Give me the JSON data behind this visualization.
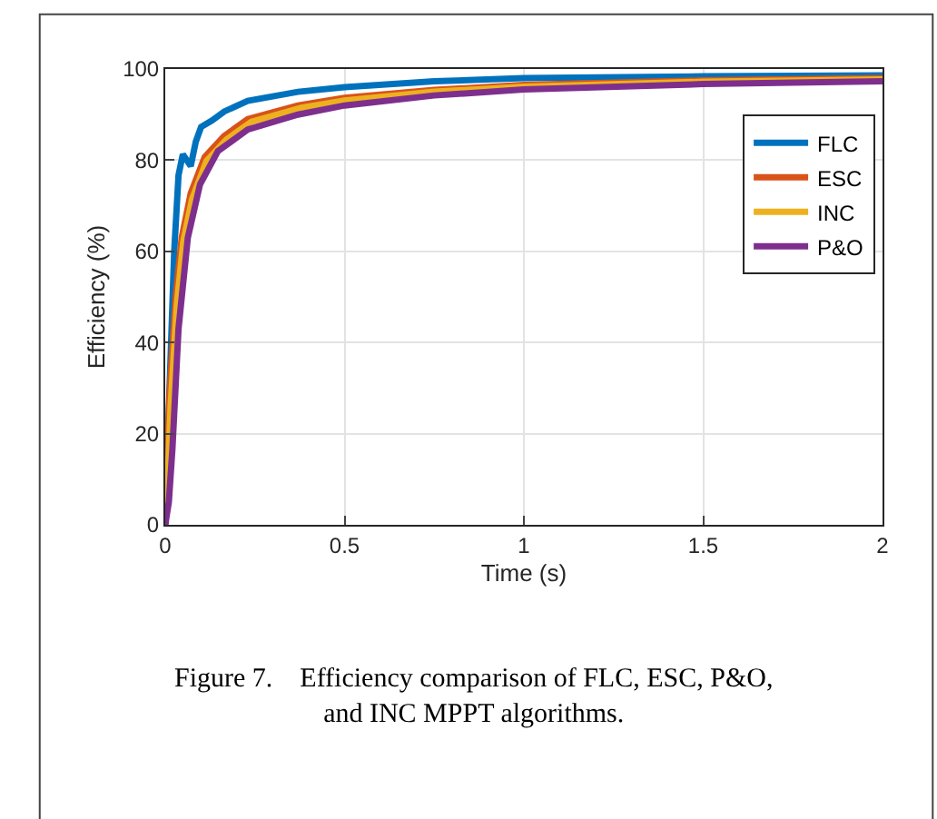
{
  "chart_data": {
    "type": "line",
    "xlabel": "Time (s)",
    "ylabel": "Efficiency (%)",
    "xlim": [
      0,
      2
    ],
    "ylim": [
      0,
      100
    ],
    "xticks": [
      0,
      0.5,
      1,
      1.5,
      2
    ],
    "yticks": [
      0,
      20,
      40,
      60,
      80,
      100
    ],
    "grid": true,
    "legend": "top right",
    "line_style": "solid",
    "marker": "none",
    "annotations": [
      "Figure 7.    Efficiency comparison of FLC, ESC, P&O, and INC MPPT algorithms."
    ],
    "series": [
      {
        "name": "FLC",
        "color": "#0072bd",
        "x": [
          0,
          0.012,
          0.025,
          0.037,
          0.049,
          0.06,
          0.071,
          0.085,
          0.1,
          0.13,
          0.165,
          0.23,
          0.37,
          0.5,
          0.75,
          1,
          1.5,
          2
        ],
        "values": [
          0,
          30,
          60,
          76.7,
          81.3,
          80,
          78.7,
          84,
          87.3,
          88.7,
          90.7,
          93,
          95,
          96,
          97.3,
          98,
          98.4,
          98.6
        ]
      },
      {
        "name": "ESC",
        "color": "#d95319",
        "x": [
          0,
          0.006,
          0.012,
          0.029,
          0.046,
          0.071,
          0.11,
          0.164,
          0.23,
          0.37,
          0.5,
          0.75,
          1,
          1.5,
          2
        ],
        "values": [
          0,
          15,
          28.7,
          50,
          63,
          72.7,
          80.7,
          85.3,
          89,
          92,
          93.7,
          95.4,
          96.5,
          97.5,
          98
        ]
      },
      {
        "name": "INC",
        "color": "#edb120",
        "x": [
          0,
          0.008,
          0.015,
          0.032,
          0.05,
          0.075,
          0.115,
          0.17,
          0.24,
          0.38,
          0.5,
          0.75,
          1,
          1.5,
          2
        ],
        "values": [
          0,
          12,
          26,
          48,
          62,
          71.5,
          79.8,
          84.5,
          88.4,
          91.5,
          93.1,
          95,
          96.1,
          97.2,
          97.7
        ]
      },
      {
        "name": "P&O",
        "color": "#7e2f8e",
        "x": [
          0,
          0.01,
          0.02,
          0.037,
          0.063,
          0.097,
          0.147,
          0.23,
          0.37,
          0.5,
          0.75,
          1,
          1.5,
          2
        ],
        "values": [
          0,
          5,
          16.7,
          43,
          63,
          74.7,
          82,
          86.7,
          90,
          92,
          94.2,
          95.5,
          96.7,
          97.3
        ]
      }
    ]
  }
}
